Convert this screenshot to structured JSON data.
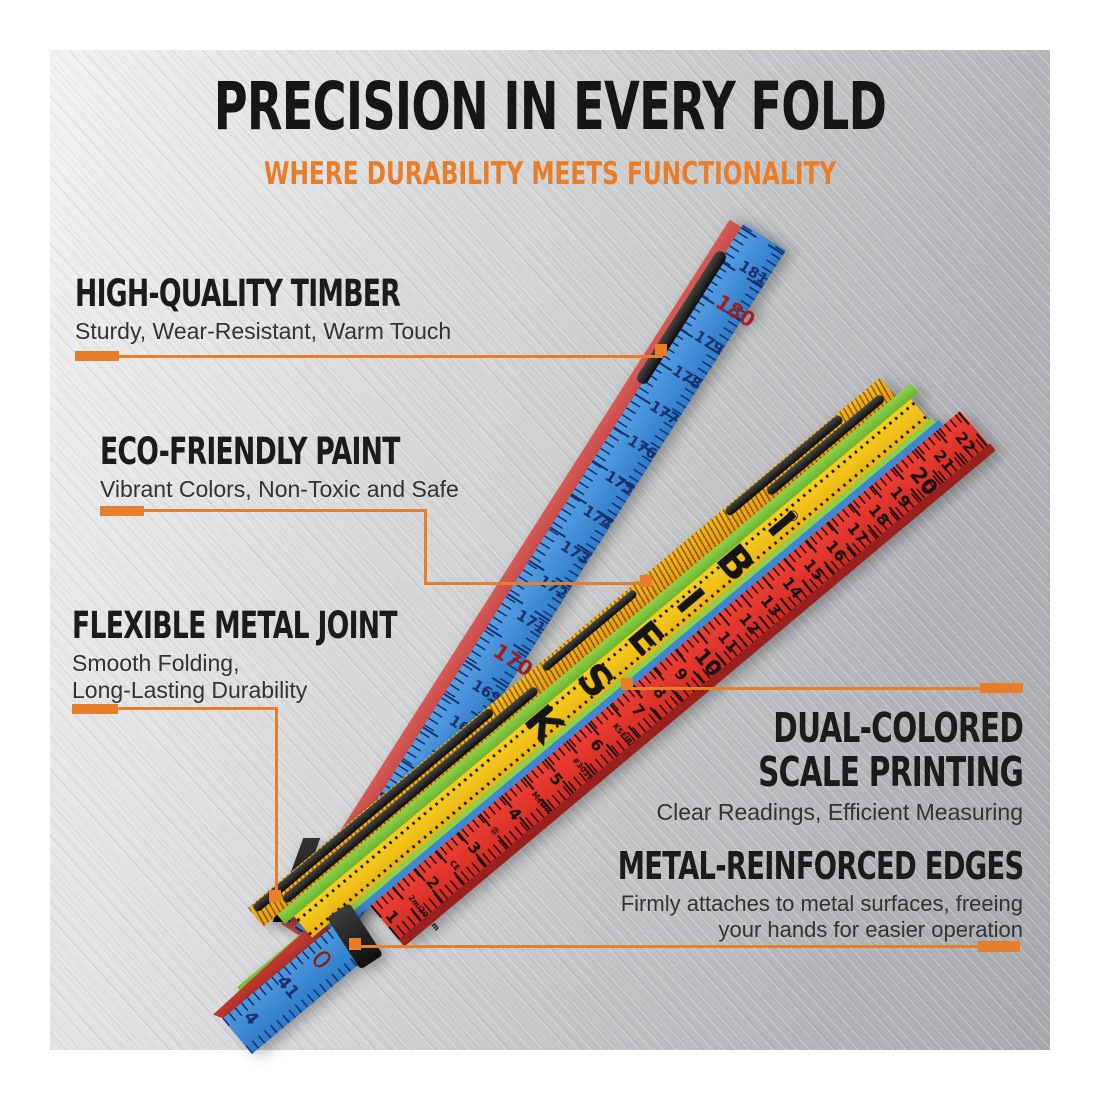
{
  "header": {
    "title": "PRECISION IN EVERY FOLD",
    "subtitle": "WHERE DURABILITY MEETS FUNCTIONALITY"
  },
  "accent_color": "#e87d2a",
  "features": {
    "timber": {
      "title": "HIGH-QUALITY TIMBER",
      "desc": "Sturdy, Wear-Resistant, Warm Touch"
    },
    "paint": {
      "title": "ECO-FRIENDLY PAINT",
      "desc": "Vibrant Colors, Non-Toxic and Safe"
    },
    "joint": {
      "title": "FLEXIBLE METAL JOINT",
      "desc_line1": "Smooth Folding,",
      "desc_line2": "Long-Lasting Durability"
    },
    "scale": {
      "title_line1": "DUAL-COLORED",
      "title_line2": "SCALE PRINTING",
      "desc": "Clear Readings, Efficient Measuring"
    },
    "edges": {
      "title": "METAL-REINFORCED EDGES",
      "desc_line1": "Firmly attaches to metal surfaces, freeing",
      "desc_line2": "your hands for easier operation"
    }
  },
  "ruler": {
    "brand": "KSEIBI",
    "registered_mark": "®",
    "colors": {
      "blue": "#3d8ed8",
      "red": "#e8332b",
      "yellow": "#f2c41d",
      "green": "#7dc33e",
      "stack_orange": "#f0a816",
      "edge_red": "#c94a48",
      "dark_red_edge": "#9a201d"
    },
    "blue_scale": [
      {
        "t": "162"
      },
      {
        "t": "163"
      },
      {
        "t": "164"
      },
      {
        "t": "165"
      },
      {
        "t": "166"
      },
      {
        "t": "167"
      },
      {
        "t": "168"
      },
      {
        "t": "169"
      },
      {
        "t": "170",
        "k": "decade"
      },
      {
        "t": "171"
      },
      {
        "t": "172"
      },
      {
        "t": "173"
      },
      {
        "t": "174"
      },
      {
        "t": "175"
      },
      {
        "t": "176"
      },
      {
        "t": "177"
      },
      {
        "t": "178"
      },
      {
        "t": "179"
      },
      {
        "t": "180",
        "k": "decade"
      },
      {
        "t": "181"
      }
    ],
    "red_scale": [
      {
        "t": "1"
      },
      {
        "t": "2m/200cm",
        "k": "mark"
      },
      {
        "t": "2"
      },
      {
        "t": "CE",
        "k": "mark"
      },
      {
        "t": "3"
      },
      {
        "t": "Ⓓ",
        "k": "mark"
      },
      {
        "t": "4"
      },
      {
        "t": "Metric",
        "k": "mark"
      },
      {
        "t": "5"
      },
      {
        "t": "#30398",
        "k": "mark"
      },
      {
        "t": "6"
      },
      {
        "t": "KSEIBI",
        "k": "mark"
      },
      {
        "t": "7"
      },
      {
        "t": "8"
      },
      {
        "t": "9"
      },
      {
        "t": "10",
        "k": "decade"
      },
      {
        "t": "11"
      },
      {
        "t": "12"
      },
      {
        "t": "13"
      },
      {
        "t": "14"
      },
      {
        "t": "15"
      },
      {
        "t": "16"
      },
      {
        "t": "17"
      },
      {
        "t": "18"
      },
      {
        "t": "19"
      },
      {
        "t": "20",
        "k": "decade"
      },
      {
        "t": "21"
      },
      {
        "t": "22"
      }
    ],
    "end_numbers": {
      "zero": "0",
      "a": "41",
      "b": "4"
    }
  }
}
